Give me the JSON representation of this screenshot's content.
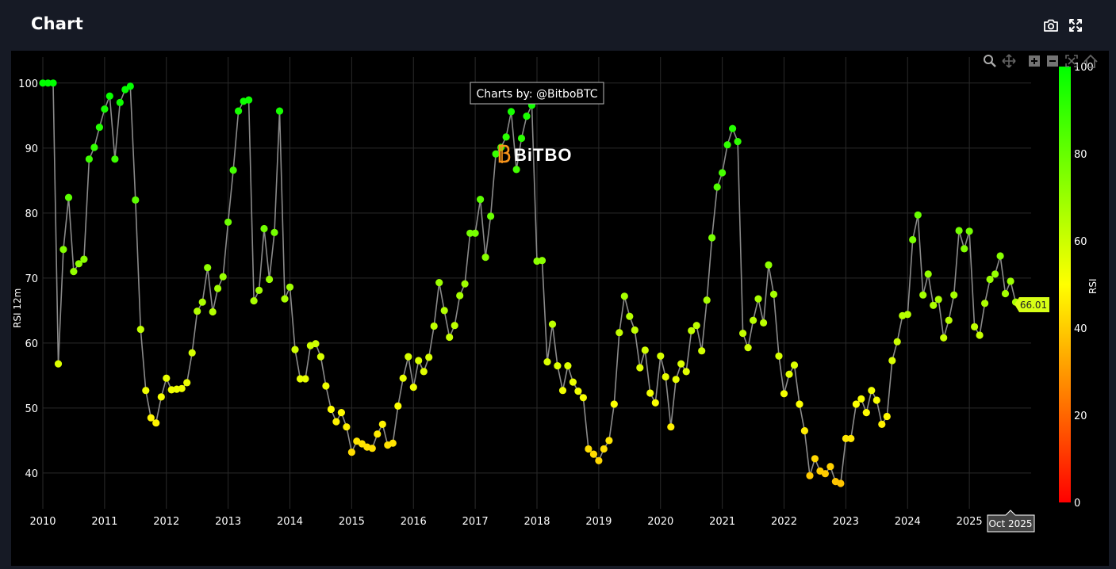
{
  "header": {
    "title": "Chart"
  },
  "icons": {
    "camera": "camera-icon",
    "expand": "expand-icon"
  },
  "chart_data": {
    "type": "scatter",
    "mode": "lines+markers",
    "title": "Chart",
    "xlabel": "",
    "ylabel": "RSI 12m",
    "ylim": [
      34.5,
      104
    ],
    "xlim": [
      2010.0,
      2026.0
    ],
    "x_ticks": [
      "2010",
      "2011",
      "2012",
      "2013",
      "2014",
      "2015",
      "2016",
      "2017",
      "2018",
      "2019",
      "2020",
      "2021",
      "2022",
      "2023",
      "2024",
      "2025"
    ],
    "y_ticks": [
      40,
      50,
      60,
      70,
      80,
      90,
      100
    ],
    "colorbar": {
      "title": "RSI",
      "min": 0,
      "max": 100,
      "ticks": [
        0,
        20,
        40,
        60,
        80,
        100
      ],
      "colors": [
        "#ff0000",
        "#ffff00",
        "#00ff00"
      ]
    },
    "annotation": "Charts by: @BitboBTC",
    "watermark": "BiTBO",
    "last_value_label": "66.01",
    "hover_x_label": "Oct 2025",
    "x": [
      2010.0,
      2010.083,
      2010.167,
      2010.25,
      2010.333,
      2010.417,
      2010.5,
      2010.583,
      2010.667,
      2010.75,
      2010.833,
      2010.917,
      2011.0,
      2011.083,
      2011.167,
      2011.25,
      2011.333,
      2011.417,
      2011.5,
      2011.583,
      2011.667,
      2011.75,
      2011.833,
      2011.917,
      2012.0,
      2012.083,
      2012.167,
      2012.25,
      2012.333,
      2012.417,
      2012.5,
      2012.583,
      2012.667,
      2012.75,
      2012.833,
      2012.917,
      2013.0,
      2013.083,
      2013.167,
      2013.25,
      2013.333,
      2013.417,
      2013.5,
      2013.583,
      2013.667,
      2013.75,
      2013.833,
      2013.917,
      2014.0,
      2014.083,
      2014.167,
      2014.25,
      2014.333,
      2014.417,
      2014.5,
      2014.583,
      2014.667,
      2014.75,
      2014.833,
      2014.917,
      2015.0,
      2015.083,
      2015.167,
      2015.25,
      2015.333,
      2015.417,
      2015.5,
      2015.583,
      2015.667,
      2015.75,
      2015.833,
      2015.917,
      2016.0,
      2016.083,
      2016.167,
      2016.25,
      2016.333,
      2016.417,
      2016.5,
      2016.583,
      2016.667,
      2016.75,
      2016.833,
      2016.917,
      2017.0,
      2017.083,
      2017.167,
      2017.25,
      2017.333,
      2017.417,
      2017.5,
      2017.583,
      2017.667,
      2017.75,
      2017.833,
      2017.917,
      2018.0,
      2018.083,
      2018.167,
      2018.25,
      2018.333,
      2018.417,
      2018.5,
      2018.583,
      2018.667,
      2018.75,
      2018.833,
      2018.917,
      2019.0,
      2019.083,
      2019.167,
      2019.25,
      2019.333,
      2019.417,
      2019.5,
      2019.583,
      2019.667,
      2019.75,
      2019.833,
      2019.917,
      2020.0,
      2020.083,
      2020.167,
      2020.25,
      2020.333,
      2020.417,
      2020.5,
      2020.583,
      2020.667,
      2020.75,
      2020.833,
      2020.917,
      2021.0,
      2021.083,
      2021.167,
      2021.25,
      2021.333,
      2021.417,
      2021.5,
      2021.583,
      2021.667,
      2021.75,
      2021.833,
      2021.917,
      2022.0,
      2022.083,
      2022.167,
      2022.25,
      2022.333,
      2022.417,
      2022.5,
      2022.583,
      2022.667,
      2022.75,
      2022.833,
      2022.917,
      2023.0,
      2023.083,
      2023.167,
      2023.25,
      2023.333,
      2023.417,
      2023.5,
      2023.583,
      2023.667,
      2023.75,
      2023.833,
      2023.917,
      2024.0,
      2024.083,
      2024.167,
      2024.25,
      2024.333,
      2024.417,
      2024.5,
      2024.583,
      2024.667,
      2024.75,
      2024.833,
      2024.917,
      2025.0,
      2025.083,
      2025.167,
      2025.25,
      2025.333,
      2025.417,
      2025.5,
      2025.583,
      2025.667,
      2025.75,
      2025.833
    ],
    "values": [
      100,
      100,
      100,
      56.8,
      74.4,
      82.4,
      71.0,
      72.2,
      72.9,
      88.3,
      90.1,
      93.2,
      96.0,
      98.0,
      88.3,
      97.0,
      99.0,
      99.5,
      82.0,
      62.1,
      52.7,
      48.5,
      47.7,
      51.7,
      54.6,
      52.8,
      52.9,
      53.0,
      53.9,
      58.5,
      64.9,
      66.3,
      71.6,
      64.8,
      68.4,
      70.2,
      78.6,
      86.6,
      95.7,
      97.2,
      97.4,
      66.5,
      68.1,
      77.6,
      69.8,
      77.0,
      95.7,
      66.8,
      68.6,
      59.0,
      54.5,
      54.5,
      59.6,
      59.9,
      57.9,
      53.4,
      49.8,
      47.9,
      49.3,
      47.1,
      43.2,
      44.9,
      44.5,
      44.0,
      43.8,
      46.0,
      47.5,
      44.3,
      44.6,
      50.3,
      54.6,
      57.9,
      53.2,
      57.3,
      55.6,
      57.8,
      62.6,
      69.3,
      65.0,
      60.9,
      62.7,
      67.3,
      69.1,
      76.9,
      76.9,
      82.1,
      73.2,
      79.5,
      89.1,
      90.1,
      91.7,
      95.6,
      86.7,
      91.5,
      94.9,
      96.6,
      72.6,
      72.7,
      57.1,
      62.9,
      56.5,
      52.7,
      56.5,
      54.0,
      52.6,
      51.6,
      43.7,
      42.9,
      41.9,
      43.7,
      45.0,
      50.6,
      61.6,
      67.2,
      64.1,
      62.0,
      56.2,
      58.9,
      52.3,
      50.8,
      58.0,
      54.8,
      47.1,
      54.4,
      56.8,
      55.6,
      61.9,
      62.7,
      58.8,
      66.6,
      76.2,
      84.0,
      86.2,
      90.5,
      93.0,
      91.0,
      61.5,
      59.3,
      63.5,
      66.8,
      63.1,
      72.0,
      67.5,
      58.0,
      52.2,
      55.2,
      56.6,
      50.6,
      46.5,
      39.6,
      42.2,
      40.3,
      39.9,
      41.0,
      38.7,
      38.4,
      45.3,
      45.3,
      50.6,
      51.4,
      49.3,
      52.7,
      51.2,
      47.5,
      48.7,
      57.3,
      60.2,
      64.2,
      64.4,
      75.9,
      79.7,
      67.4,
      70.6,
      65.8,
      66.7,
      60.8,
      63.5,
      67.4,
      77.3,
      74.5,
      77.2,
      62.5,
      61.2,
      66.1,
      69.8,
      70.6,
      73.4,
      67.6,
      69.5,
      66.3,
      66.0
    ]
  }
}
